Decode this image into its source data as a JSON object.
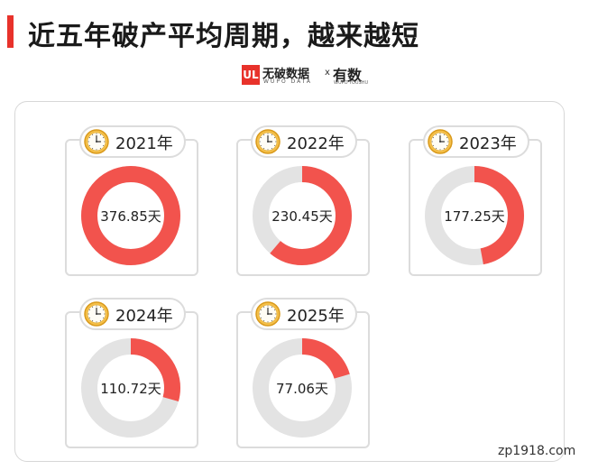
{
  "header": {
    "title": "近五年破产平均周期，越来越短",
    "accent_color": "#e8322b"
  },
  "brand": {
    "logo_text": "UL",
    "name": "无破数据",
    "sub": "WUPO DATA",
    "connector": "x",
    "partner": "有数",
    "partner_sub": "WUPO YOUSHU"
  },
  "watermark": "zp1918.com",
  "colors": {
    "filled": "#f2534d",
    "track": "#e3e3e3",
    "clock_face": "#f5c04a"
  },
  "chart_data": {
    "type": "pie",
    "title": "近五年破产平均周期，越来越短",
    "unit": "天",
    "max_value": 376.85,
    "categories": [
      "2021年",
      "2022年",
      "2023年",
      "2024年",
      "2025年"
    ],
    "values": [
      376.85,
      230.45,
      177.25,
      110.72,
      77.06
    ],
    "labels": [
      "376.85天",
      "230.45天",
      "177.25天",
      "110.72天",
      "77.06天"
    ]
  }
}
